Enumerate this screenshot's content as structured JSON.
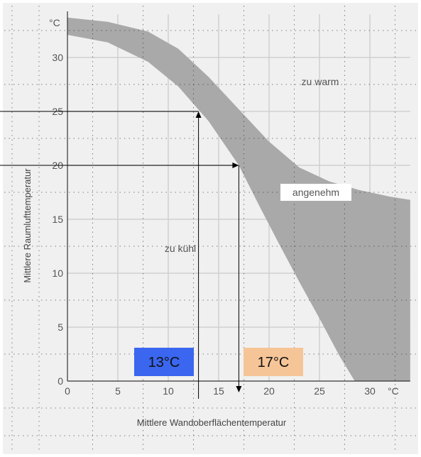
{
  "chart_data": {
    "type": "area",
    "xlabel": "Mittlere Wandoberflächentemperatur",
    "ylabel": "Mittlere Raumlufttemperatur",
    "x_unit": "°C",
    "y_unit": "°C",
    "xlim": [
      0,
      34
    ],
    "ylim": [
      0,
      34
    ],
    "x_ticks": [
      "0",
      "5",
      "10",
      "15",
      "20",
      "25",
      "30"
    ],
    "y_ticks": [
      "0",
      "5",
      "10",
      "15",
      "20",
      "25",
      "30"
    ],
    "grid": true,
    "comfort_band": {
      "label": "angenehm",
      "color": "#a9a9a9",
      "upper_boundary": {
        "x": [
          0,
          4,
          8,
          11,
          14,
          17,
          20,
          23,
          26,
          29,
          32,
          34
        ],
        "y": [
          33.7,
          33.3,
          32.4,
          30.8,
          28.2,
          25.2,
          22.2,
          19.8,
          18.5,
          17.7,
          17.1,
          16.8
        ]
      },
      "lower_boundary": {
        "x": [
          0,
          4,
          8,
          11,
          14,
          17,
          19,
          21,
          23,
          25,
          27,
          28.5
        ],
        "y": [
          32.1,
          31.4,
          29.6,
          27.3,
          24.1,
          20.0,
          16.3,
          12.7,
          9.2,
          5.8,
          2.3,
          0
        ]
      }
    },
    "region_labels": {
      "warm": "zu warm",
      "comfort": "angenehm",
      "cool": "zu kühl"
    },
    "annotations": [
      {
        "label": "13°C",
        "wall_temp": 13,
        "air_temp": 25,
        "color": "#3a66f0"
      },
      {
        "label": "17°C",
        "wall_temp": 17,
        "air_temp": 20,
        "color": "#f6c597"
      }
    ]
  }
}
